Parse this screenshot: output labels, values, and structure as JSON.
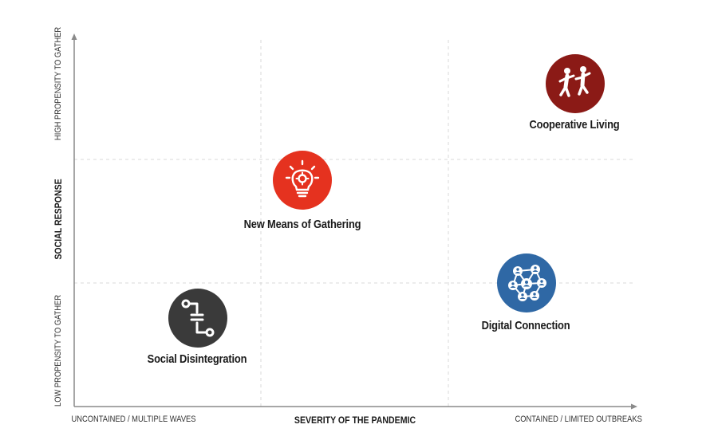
{
  "axes": {
    "x_title": "SEVERITY OF THE PANDEMIC",
    "x_left": "UNCONTAINED / MULTIPLE WAVES",
    "x_right": "CONTAINED / LIMITED OUTBREAKS",
    "y_title": "SOCIAL RESPONSE",
    "y_top": "HIGH PROPENSITY TO GATHER",
    "y_bottom": "LOW PROPENSITY TO GATHER"
  },
  "scenarios": {
    "cooperative": {
      "label": "Cooperative Living",
      "icon": "dancing-people-icon",
      "color": "#8b1a16"
    },
    "gathering": {
      "label": "New Means of Gathering",
      "icon": "lightbulb-gear-icon",
      "color": "#e5321f"
    },
    "digital": {
      "label": "Digital Connection",
      "icon": "network-people-icon",
      "color": "#2f68a5"
    },
    "disintegration": {
      "label": "Social Disintegration",
      "icon": "split-path-icon",
      "color": "#3a3a3a"
    }
  }
}
